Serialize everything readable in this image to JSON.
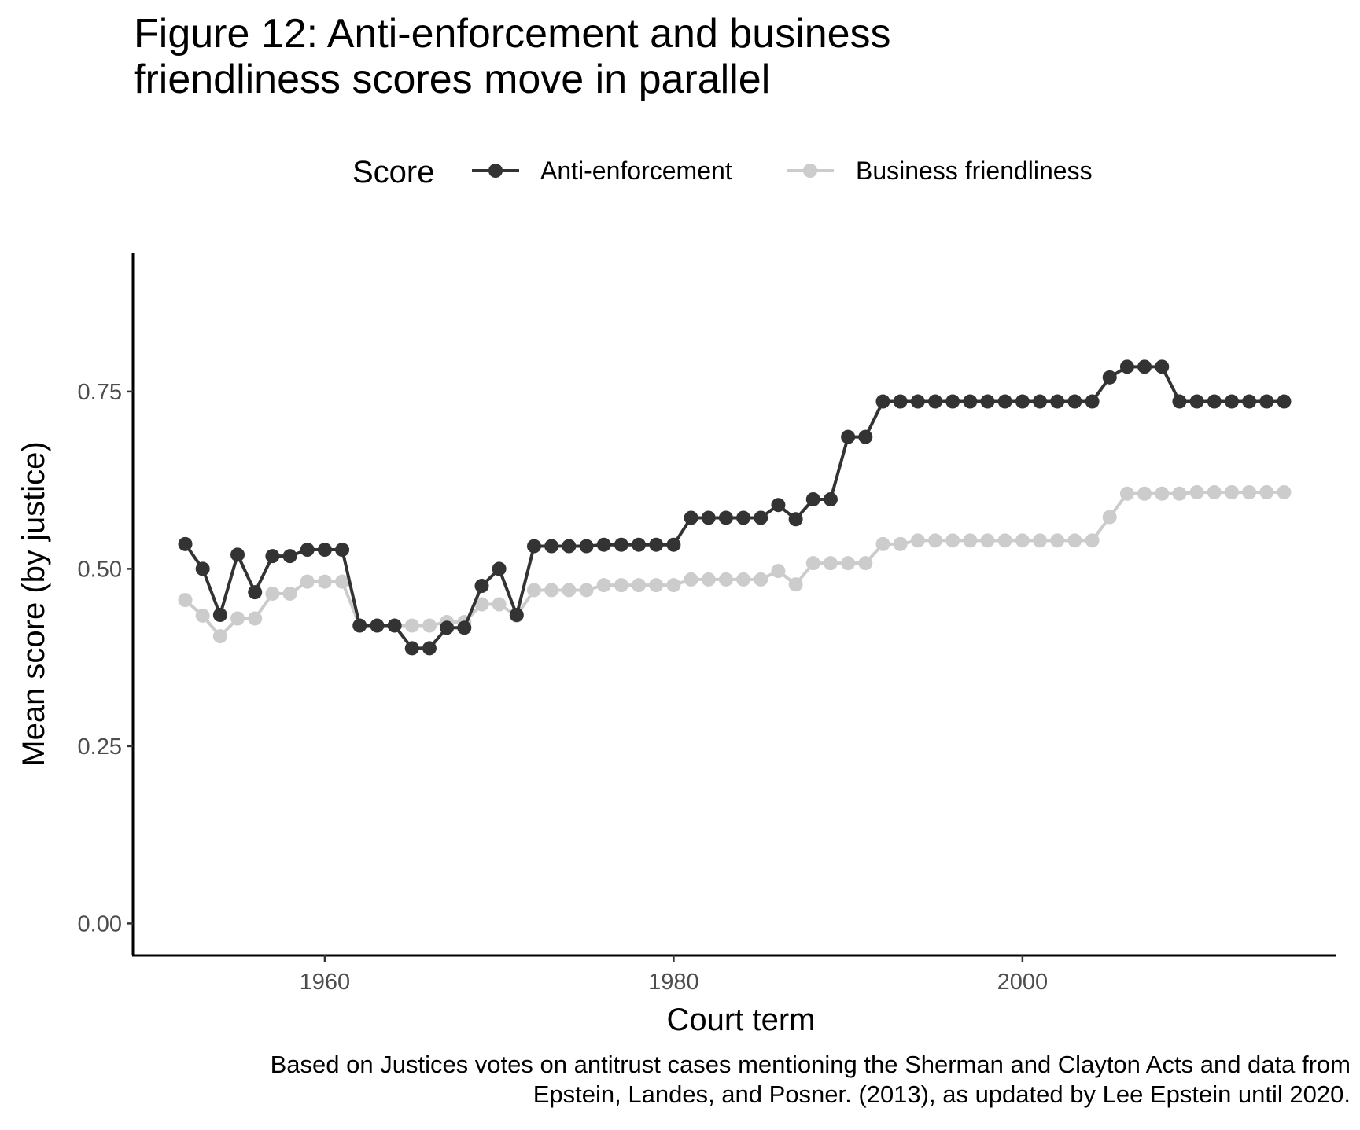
{
  "title_lines": [
    "Figure 12: Anti-enforcement and business",
    "friendliness scores move in parallel"
  ],
  "caption_lines": [
    "Based on Justices votes on antitrust cases mentioning the Sherman and Clayton Acts and data from",
    "Epstein, Landes, and Posner. (2013), as updated by Lee Epstein until 2020."
  ],
  "chart_data": {
    "type": "line",
    "xlabel": "Court term",
    "ylabel": "Mean score (by justice)",
    "legend_title": "Score",
    "legend_position": "top",
    "grid": false,
    "xlim": [
      1949,
      2018
    ],
    "ylim": [
      -0.045,
      0.945
    ],
    "x_ticks": [
      1960,
      1980,
      2000
    ],
    "x_tick_labels": [
      "1960",
      "1980",
      "2000"
    ],
    "y_ticks": [
      0,
      0.25,
      0.5,
      0.75
    ],
    "y_tick_labels": [
      "0.00",
      "0.25",
      "0.50",
      "0.75"
    ],
    "x": [
      1952,
      1953,
      1954,
      1955,
      1956,
      1957,
      1958,
      1959,
      1960,
      1961,
      1962,
      1963,
      1964,
      1965,
      1966,
      1967,
      1968,
      1969,
      1970,
      1971,
      1972,
      1973,
      1974,
      1975,
      1976,
      1977,
      1978,
      1979,
      1980,
      1981,
      1982,
      1983,
      1984,
      1985,
      1986,
      1987,
      1988,
      1989,
      1990,
      1991,
      1992,
      1993,
      1994,
      1995,
      1996,
      1997,
      1998,
      1999,
      2000,
      2001,
      2002,
      2003,
      2004,
      2005,
      2006,
      2007,
      2008,
      2009,
      2010,
      2011,
      2012,
      2013,
      2014,
      2015
    ],
    "series": [
      {
        "name": "Anti-enforcement",
        "color": "#333333",
        "values": [
          0.535,
          0.5,
          0.435,
          0.52,
          0.467,
          0.518,
          0.518,
          0.527,
          0.527,
          0.527,
          0.42,
          0.42,
          0.42,
          0.388,
          0.388,
          0.417,
          0.417,
          0.476,
          0.5,
          0.435,
          0.532,
          0.532,
          0.532,
          0.532,
          0.534,
          0.534,
          0.534,
          0.534,
          0.534,
          0.572,
          0.572,
          0.572,
          0.572,
          0.572,
          0.59,
          0.57,
          0.598,
          0.598,
          0.686,
          0.686,
          0.736,
          0.736,
          0.736,
          0.736,
          0.736,
          0.736,
          0.736,
          0.736,
          0.736,
          0.736,
          0.736,
          0.736,
          0.736,
          0.77,
          0.785,
          0.785,
          0.785,
          0.736,
          0.736,
          0.736,
          0.736,
          0.736,
          0.736,
          0.736
        ]
      },
      {
        "name": "Business friendliness",
        "color": "#cccccc",
        "values": [
          0.456,
          0.434,
          0.405,
          0.43,
          0.43,
          0.465,
          0.465,
          0.482,
          0.482,
          0.482,
          0.42,
          0.42,
          0.42,
          0.42,
          0.42,
          0.425,
          0.425,
          0.45,
          0.45,
          0.434,
          0.47,
          0.47,
          0.47,
          0.47,
          0.477,
          0.477,
          0.477,
          0.477,
          0.477,
          0.485,
          0.485,
          0.485,
          0.485,
          0.485,
          0.497,
          0.478,
          0.508,
          0.508,
          0.508,
          0.508,
          0.535,
          0.535,
          0.54,
          0.54,
          0.54,
          0.54,
          0.54,
          0.54,
          0.54,
          0.54,
          0.54,
          0.54,
          0.54,
          0.573,
          0.606,
          0.606,
          0.606,
          0.606,
          0.608,
          0.608,
          0.608,
          0.608,
          0.608,
          0.608
        ]
      }
    ]
  }
}
